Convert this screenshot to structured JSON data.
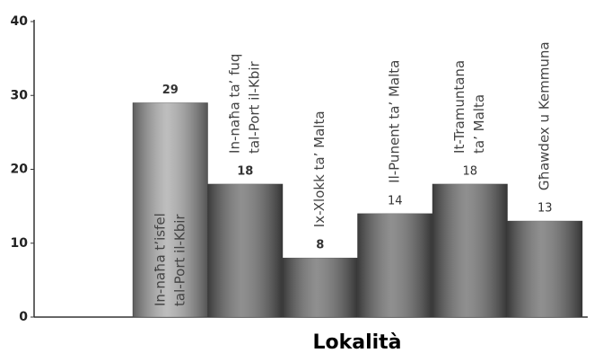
{
  "chart_data": {
    "type": "bar",
    "x_label": "Lokalità",
    "categories": [
      [
        "In-naħa t’isfel",
        "tal-Port il-Kbir"
      ],
      [
        "In-naħa ta’ fuq",
        "tal-Port il-Kbir"
      ],
      [
        "Ix-Xlokk ta’ Malta"
      ],
      [
        "Il-Punent ta’ Malta"
      ],
      [
        "It-Tramuntana",
        "ta’ Malta"
      ],
      [
        "Għawdex u Kemmuna"
      ]
    ],
    "values": [
      29,
      18,
      8,
      14,
      18,
      13
    ],
    "colors": [
      "#a8a8a8",
      "#6a6a6a",
      "#6a6a6a",
      "#6a6a6a",
      "#6a6a6a",
      "#6a6a6a"
    ],
    "ylim": [
      0,
      40
    ],
    "yticks": [
      0,
      10,
      20,
      30,
      40
    ]
  }
}
